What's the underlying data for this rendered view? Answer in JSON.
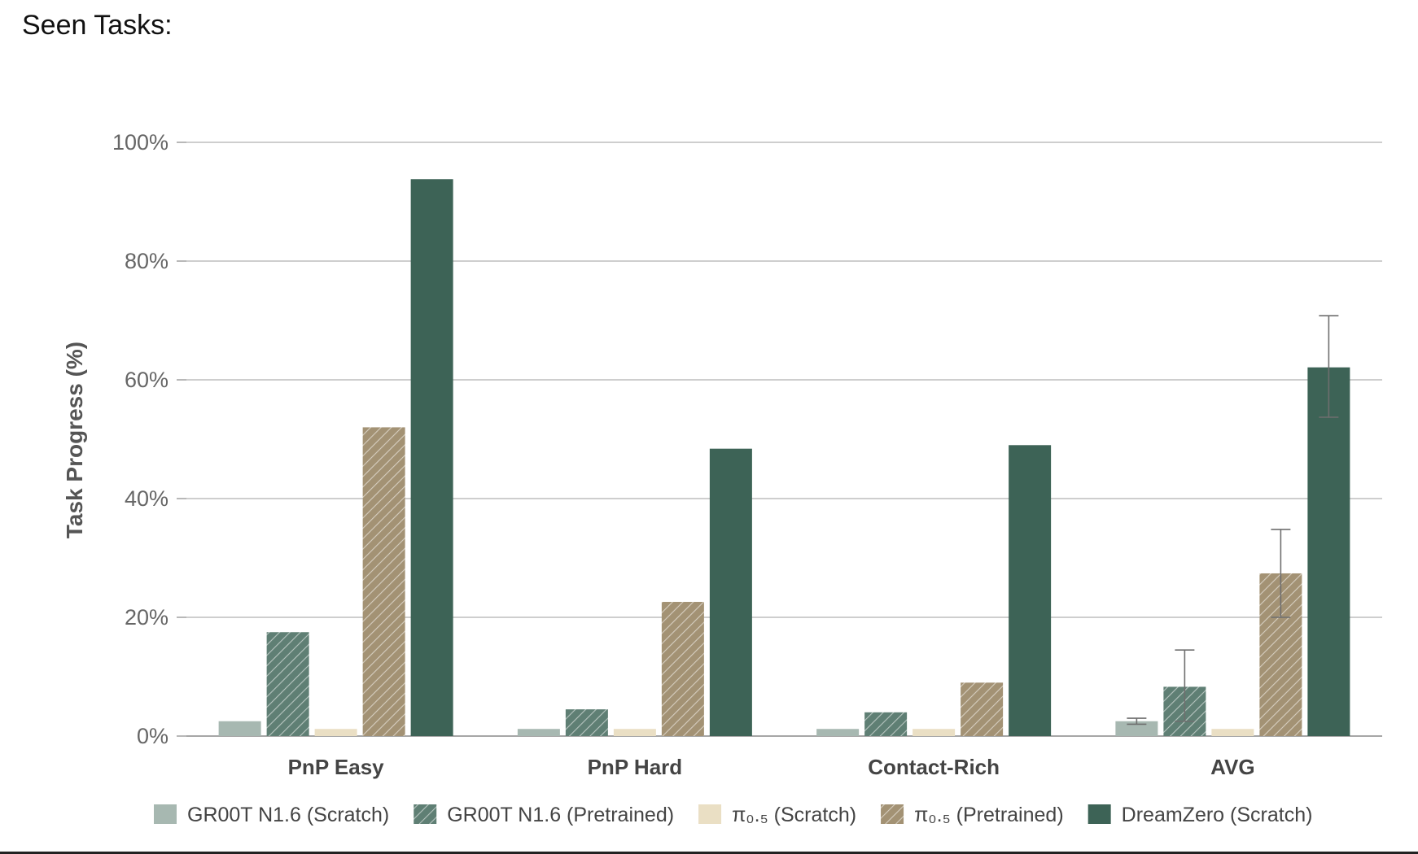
{
  "page": {
    "title": "Seen Tasks:"
  },
  "chart_data": {
    "type": "bar",
    "title": "",
    "xlabel": "",
    "ylabel": "Task Progress (%)",
    "ylim": [
      0,
      100
    ],
    "yticks": [
      "0%",
      "20%",
      "40%",
      "60%",
      "80%",
      "100%"
    ],
    "ytick_values": [
      0,
      20,
      40,
      60,
      80,
      100
    ],
    "grid": true,
    "legend_position": "bottom",
    "categories": [
      "PnP Easy",
      "PnP Hard",
      "Contact-Rich",
      "AVG"
    ],
    "series": [
      {
        "name": "GR00T N1.6 (Scratch)",
        "color": "#a7b8b1",
        "hatched": false,
        "values": [
          2.5,
          1.2,
          1.2,
          2.5
        ],
        "error": [
          null,
          null,
          null,
          [
            2.0,
            3.0
          ]
        ]
      },
      {
        "name": "GR00T N1.6 (Pretrained)",
        "color": "#5f7f74",
        "hatched": true,
        "values": [
          17.5,
          4.5,
          4.0,
          8.3
        ],
        "error": [
          null,
          null,
          null,
          [
            2.5,
            14.5
          ]
        ]
      },
      {
        "name": "π₀.₅ (Scratch)",
        "color": "#eadfc4",
        "hatched": false,
        "values": [
          1.2,
          1.2,
          1.2,
          1.2
        ],
        "error": [
          null,
          null,
          null,
          null
        ]
      },
      {
        "name": "π₀.₅ (Pretrained)",
        "color": "#a39274",
        "hatched": true,
        "values": [
          52.0,
          22.6,
          9.0,
          27.4
        ],
        "error": [
          null,
          null,
          null,
          [
            20.0,
            34.8
          ]
        ]
      },
      {
        "name": "DreamZero (Scratch)",
        "color": "#3d6356",
        "hatched": false,
        "values": [
          93.8,
          48.4,
          49.0,
          62.1
        ],
        "error": [
          null,
          null,
          null,
          [
            53.7,
            70.8
          ]
        ]
      }
    ]
  }
}
